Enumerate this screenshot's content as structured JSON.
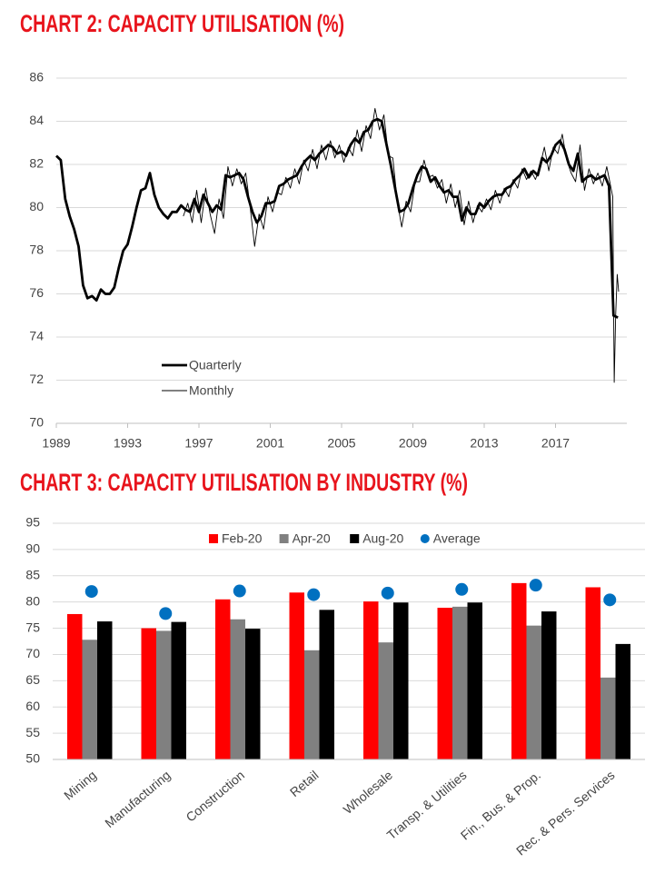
{
  "chart_data": [
    {
      "type": "line",
      "title": "CHART 2: CAPACITY UTILISATION (%)",
      "xlim": [
        1989,
        2021
      ],
      "xticks": [
        1989,
        1993,
        1997,
        2001,
        2005,
        2009,
        2013,
        2017
      ],
      "ylim": [
        70,
        86
      ],
      "yticks": [
        70,
        72,
        74,
        76,
        78,
        80,
        82,
        84,
        86
      ],
      "grid": true,
      "legend": "lower left",
      "series": [
        {
          "name": "Quarterly",
          "color": "#000000",
          "x": [
            1989,
            1989.25,
            1989.5,
            1989.75,
            1990,
            1990.25,
            1990.5,
            1990.75,
            1991,
            1991.25,
            1991.5,
            1991.75,
            1992,
            1992.25,
            1992.5,
            1992.75,
            1993,
            1993.25,
            1993.5,
            1993.75,
            1994,
            1994.25,
            1994.5,
            1994.75,
            1995,
            1995.25,
            1995.5,
            1995.75,
            1996,
            1996.25,
            1996.5,
            1996.75,
            1997,
            1997.25,
            1997.5,
            1997.75,
            1998,
            1998.25,
            1998.5,
            1998.75,
            1999,
            1999.25,
            1999.5,
            1999.75,
            2000,
            2000.25,
            2000.5,
            2000.75,
            2001,
            2001.25,
            2001.5,
            2001.75,
            2002,
            2002.25,
            2002.5,
            2002.75,
            2003,
            2003.25,
            2003.5,
            2003.75,
            2004,
            2004.25,
            2004.5,
            2004.75,
            2005,
            2005.25,
            2005.5,
            2005.75,
            2006,
            2006.25,
            2006.5,
            2006.75,
            2007,
            2007.25,
            2007.5,
            2007.75,
            2008,
            2008.25,
            2008.5,
            2008.75,
            2009,
            2009.25,
            2009.5,
            2009.75,
            2010,
            2010.25,
            2010.5,
            2010.75,
            2011,
            2011.25,
            2011.5,
            2011.75,
            2012,
            2012.25,
            2012.5,
            2012.75,
            2013,
            2013.25,
            2013.5,
            2013.75,
            2014,
            2014.25,
            2014.5,
            2014.75,
            2015,
            2015.25,
            2015.5,
            2015.75,
            2016,
            2016.25,
            2016.5,
            2016.75,
            2017,
            2017.25,
            2017.5,
            2017.75,
            2018,
            2018.25,
            2018.5,
            2018.75,
            2019,
            2019.25,
            2019.5,
            2019.75,
            2020,
            2020.25,
            2020.5
          ],
          "values": [
            82.4,
            82.2,
            80.4,
            79.6,
            79.0,
            78.2,
            76.4,
            75.8,
            75.9,
            75.7,
            76.2,
            76.0,
            76.0,
            76.3,
            77.2,
            78.0,
            78.3,
            79.1,
            80.0,
            80.8,
            80.9,
            81.6,
            80.6,
            80.0,
            79.7,
            79.5,
            79.8,
            79.8,
            80.1,
            79.9,
            79.8,
            80.4,
            79.8,
            80.6,
            80.2,
            79.8,
            80.1,
            79.9,
            81.5,
            81.4,
            81.5,
            81.6,
            81.3,
            80.5,
            79.8,
            79.3,
            79.6,
            80.2,
            80.2,
            80.3,
            81.0,
            81.1,
            81.3,
            81.4,
            81.5,
            81.9,
            82.2,
            82.4,
            82.2,
            82.5,
            82.7,
            82.9,
            82.8,
            82.5,
            82.6,
            82.4,
            82.9,
            83.2,
            83.0,
            83.5,
            83.6,
            84.0,
            84.1,
            84.0,
            83.0,
            82.0,
            80.9,
            79.8,
            79.9,
            80.2,
            80.9,
            81.5,
            81.9,
            81.8,
            81.2,
            81.4,
            81.0,
            80.7,
            80.8,
            80.5,
            80.5,
            79.4,
            80.0,
            79.7,
            79.7,
            80.2,
            80.0,
            80.3,
            80.5,
            80.6,
            80.6,
            80.9,
            81.0,
            81.3,
            81.5,
            81.8,
            81.4,
            81.7,
            81.5,
            82.3,
            82.1,
            82.4,
            82.9,
            83.1,
            82.7,
            82.0,
            81.7,
            82.5,
            81.2,
            81.4,
            81.5,
            81.3,
            81.4,
            81.5,
            81.0,
            75.0,
            74.9
          ]
        },
        {
          "name": "Monthly",
          "color": "#000000",
          "x": [
            1996.125,
            1996.375,
            1996.625,
            1996.875,
            1997.125,
            1997.375,
            1997.625,
            1997.875,
            1998.125,
            1998.375,
            1998.625,
            1998.875,
            1999.125,
            1999.375,
            1999.625,
            1999.875,
            2000.125,
            2000.375,
            2000.625,
            2000.875,
            2001.125,
            2001.375,
            2001.625,
            2001.875,
            2002.125,
            2002.375,
            2002.625,
            2002.875,
            2003.125,
            2003.375,
            2003.625,
            2003.875,
            2004.125,
            2004.375,
            2004.625,
            2004.875,
            2005.125,
            2005.375,
            2005.625,
            2005.875,
            2006.125,
            2006.375,
            2006.625,
            2006.875,
            2007.125,
            2007.375,
            2007.625,
            2007.875,
            2008.125,
            2008.375,
            2008.625,
            2008.875,
            2009.125,
            2009.375,
            2009.625,
            2009.875,
            2010.125,
            2010.375,
            2010.625,
            2010.875,
            2011.125,
            2011.375,
            2011.625,
            2011.875,
            2012.125,
            2012.375,
            2012.625,
            2012.875,
            2013.125,
            2013.375,
            2013.625,
            2013.875,
            2014.125,
            2014.375,
            2014.625,
            2014.875,
            2015.125,
            2015.375,
            2015.625,
            2015.875,
            2016.125,
            2016.375,
            2016.625,
            2016.875,
            2017.125,
            2017.375,
            2017.625,
            2017.875,
            2018.125,
            2018.375,
            2018.625,
            2018.875,
            2019.125,
            2019.375,
            2019.625,
            2019.875,
            2020.042,
            2020.208,
            2020.292,
            2020.375,
            2020.458,
            2020.542
          ],
          "values": [
            79.6,
            80.2,
            79.3,
            80.8,
            79.3,
            80.9,
            79.7,
            78.8,
            80.4,
            79.5,
            81.9,
            81.0,
            81.8,
            81.1,
            81.6,
            80.0,
            78.2,
            79.7,
            79.0,
            80.5,
            79.8,
            80.7,
            80.6,
            81.4,
            80.9,
            81.8,
            81.1,
            82.2,
            81.7,
            82.7,
            81.8,
            82.9,
            82.2,
            83.1,
            82.3,
            82.9,
            82.1,
            82.8,
            82.4,
            83.6,
            82.6,
            83.8,
            83.2,
            84.6,
            83.6,
            84.3,
            82.4,
            82.3,
            80.3,
            79.1,
            80.3,
            79.8,
            81.2,
            81.2,
            82.2,
            81.4,
            81.5,
            80.9,
            81.3,
            80.2,
            81.1,
            80.0,
            80.8,
            79.2,
            80.3,
            79.3,
            80.1,
            79.8,
            80.4,
            79.9,
            80.8,
            80.2,
            80.9,
            80.5,
            81.3,
            80.9,
            81.8,
            81.3,
            81.7,
            81.3,
            81.9,
            82.8,
            81.7,
            82.8,
            82.5,
            83.4,
            82.2,
            81.6,
            81.2,
            82.9,
            80.8,
            81.8,
            81.1,
            81.6,
            81.0,
            81.9,
            81.2,
            80.5,
            71.9,
            75.0,
            76.9,
            76.1
          ]
        }
      ]
    },
    {
      "type": "bar",
      "title": "CHART 3: CAPACITY UTILISATION BY INDUSTRY (%)",
      "categories": [
        "Mining",
        "Manufacturing",
        "Construction",
        "Retail",
        "Wholesale",
        "Transp. & Utilities",
        "Fin., Bus. & Prop.",
        "Rec. & Pers. Services"
      ],
      "ylim": [
        50,
        95
      ],
      "yticks": [
        50,
        55,
        60,
        65,
        70,
        75,
        80,
        85,
        90,
        95
      ],
      "grid": true,
      "legend": "upper center",
      "series": [
        {
          "name": "Feb-20",
          "color": "#ff0000",
          "values": [
            77.7,
            75.0,
            80.5,
            81.8,
            80.1,
            78.9,
            83.6,
            82.8
          ]
        },
        {
          "name": "Apr-20",
          "color": "#808080",
          "values": [
            72.8,
            74.5,
            76.7,
            70.8,
            72.3,
            79.1,
            75.5,
            65.6
          ]
        },
        {
          "name": "Aug-20",
          "color": "#000000",
          "values": [
            76.3,
            76.2,
            74.9,
            78.5,
            79.9,
            79.9,
            78.2,
            72.0
          ]
        },
        {
          "name": "Average",
          "color": "#0070c0",
          "type": "scatter",
          "values": [
            82.0,
            77.8,
            82.1,
            81.4,
            81.7,
            82.4,
            83.2,
            80.4
          ]
        }
      ]
    }
  ]
}
